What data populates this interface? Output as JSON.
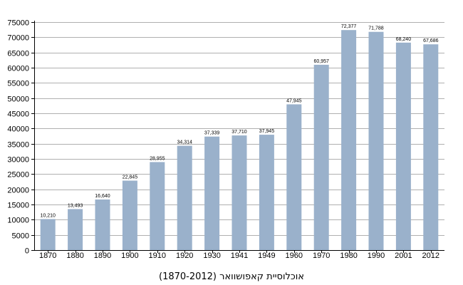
{
  "chart_data": {
    "type": "bar",
    "categories": [
      "1870",
      "1880",
      "1890",
      "1900",
      "1910",
      "1920",
      "1930",
      "1941",
      "1949",
      "1960",
      "1970",
      "1980",
      "1990",
      "2001",
      "2012"
    ],
    "values": [
      10210,
      13493,
      16640,
      22845,
      28955,
      34314,
      37339,
      37710,
      37945,
      47945,
      60957,
      72377,
      71788,
      68240,
      67686
    ],
    "data_labels": [
      "10,210",
      "13,493",
      "16,640",
      "22,845",
      "28,955",
      "34,314",
      "37,339",
      "37,710",
      "37,945",
      "47,945",
      "60,957",
      "72,377",
      "71,788",
      "68,240",
      "67,686"
    ],
    "title": "אוכלוסיית קאפושוואר (1870-2012)",
    "xlabel": "",
    "ylabel": "",
    "ylim": [
      0,
      75000
    ],
    "y_ticks": [
      0,
      5000,
      10000,
      15000,
      20000,
      25000,
      30000,
      35000,
      40000,
      45000,
      50000,
      55000,
      60000,
      65000,
      70000,
      75000
    ],
    "grid": true,
    "bar_color": "#9ab1cb",
    "grid_color": "#b0b0b0"
  }
}
